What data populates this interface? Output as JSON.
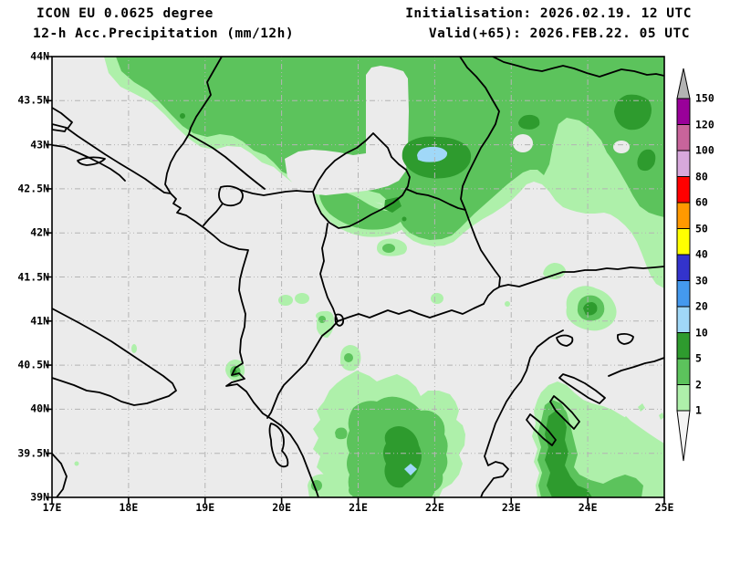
{
  "header": {
    "model": "ICON EU 0.0625 degree",
    "product": "12-h Acc.Precipitation (mm/12h)",
    "init_label": "Initialisation: 2026.02.19. 12 UTC",
    "valid_label": "Valid(+65): 2026.FEB.22. 05 UTC"
  },
  "axes": {
    "lat": [
      "44N",
      "43.5N",
      "43N",
      "42.5N",
      "42N",
      "41.5N",
      "41N",
      "40.5N",
      "40N",
      "39.5N",
      "39N"
    ],
    "lon": [
      "17E",
      "18E",
      "19E",
      "20E",
      "21E",
      "22E",
      "23E",
      "24E",
      "25E"
    ]
  },
  "colorbar": {
    "unit": "mm/12h",
    "boundary_labels": [
      "150",
      "120",
      "100",
      "80",
      "60",
      "50",
      "40",
      "30",
      "20",
      "10",
      "5",
      "2",
      "1"
    ],
    "segment_colors_top_to_bottom": [
      "#990099",
      "#c8649b",
      "#d8a8dc",
      "#ff0000",
      "#ff9900",
      "#ffff00",
      "#3333cc",
      "#4499ee",
      "#a0d8f8",
      "#2e9b2e",
      "#5cc35c",
      "#aef0aa"
    ],
    "overflow_top_color": "#b3b3b3",
    "underflow_bottom_color": "#f4f4f4"
  },
  "map": {
    "palette": {
      "land": "#ebebeb",
      "light_green": "#aef0aa",
      "medium_green": "#5cc35c",
      "dark_green": "#2e9b2e",
      "light_blue": "#a0d8f8",
      "grid": "#b4b4b4",
      "border": "#000000"
    },
    "precip_levels_mm": [
      1,
      2,
      5,
      10,
      20,
      30,
      40,
      50,
      60,
      80,
      100,
      120,
      150
    ]
  }
}
